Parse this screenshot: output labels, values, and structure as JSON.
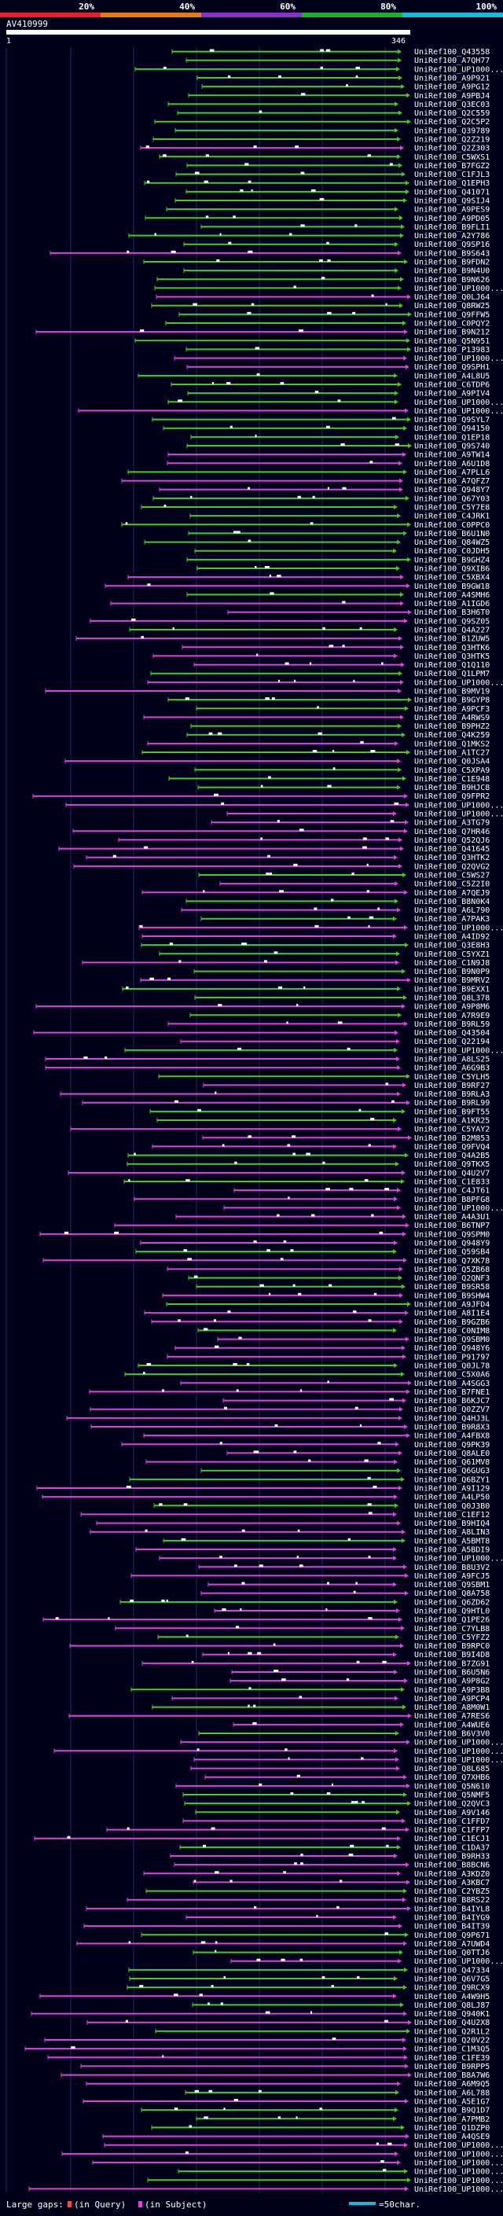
{
  "chart_data": {
    "type": "alignment-overview",
    "query_id": "AV410999",
    "query_length": 346,
    "axis_start_label": "1",
    "axis_end_label": "346",
    "identity_legend": [
      {
        "label": "20%",
        "color": "#e8202a"
      },
      {
        "label": "40%",
        "color": "#e87a1a"
      },
      {
        "label": "60%",
        "color": "#8a2fc8"
      },
      {
        "label": "80%",
        "color": "#1fae34"
      },
      {
        "label": "100%",
        "color": "#1ab8d8"
      }
    ],
    "hit_colors": {
      "magenta": "#dd44dd",
      "green": "#44cc22"
    },
    "footer": {
      "large_gaps_label": "Large gaps:",
      "in_query_label": "(in Query)",
      "in_subject_label": "(in Subject)",
      "scale_label": "=50char."
    },
    "hit_labels": [
      "UniRef100_Q43558",
      "UniRef100_A7QH77",
      "UniRef100_UP1000...",
      "UniRef100_A9P921",
      "UniRef100_A9PG12",
      "UniRef100_A9PBJ4",
      "UniRef100_Q3EC03",
      "UniRef100_Q2C559",
      "UniRef100_Q2C5P2",
      "UniRef100_Q39789",
      "UniRef100_Q2Z219",
      "UniRef100_Q2Z303",
      "UniRef100_C5WXS1",
      "UniRef100_B7FGZ2",
      "UniRef100_C1FJL3",
      "UniRef100_Q1EPH3",
      "UniRef100_Q41071",
      "UniRef100_Q9SIJ4",
      "UniRef100_A9PES9",
      "UniRef100_A9PD05",
      "UniRef100_B9FLI1",
      "UniRef100_A2Y786",
      "UniRef100_Q9SP16",
      "UniRef100_B9S643",
      "UniRef100_B9FDN2",
      "UniRef100_B9N4U0",
      "UniRef100_B9N626",
      "UniRef100_UP1000...",
      "UniRef100_Q0LJ64",
      "UniRef100_Q8RW25",
      "UniRef100_Q9FFW5",
      "UniRef100_C0PQY2",
      "UniRef100_B9N212",
      "UniRef100_Q5N951",
      "UniRef100_P13983",
      "UniRef100_UP1000...",
      "UniRef100_Q9SPH1",
      "UniRef100_A4L8U5",
      "UniRef100_C6TDP6",
      "UniRef100_A9PIV4",
      "UniRef100_UP1000...",
      "UniRef100_UP1000...",
      "UniRef100_Q9SYL7",
      "UniRef100_Q94150",
      "UniRef100_Q1EP18",
      "UniRef100_Q9S740",
      "UniRef100_A9TW14",
      "UniRef100_A6U1D8",
      "UniRef100_A7PLL6",
      "UniRef100_A7QFZ7",
      "UniRef100_Q948Y7",
      "UniRef100_Q67Y03",
      "UniRef100_C5Y7E8",
      "UniRef100_C4JRK1",
      "UniRef100_C0PPC0",
      "UniRef100_B6U1N0",
      "UniRef100_Q84WZ5",
      "UniRef100_C0JDH5",
      "UniRef100_B9GHZ4",
      "UniRef100_Q9XIB6",
      "UniRef100_C5XBX4",
      "UniRef100_B9GW18",
      "UniRef100_A4SMH6",
      "UniRef100_A1IGD6",
      "UniRef100_B3H6T0",
      "UniRef100_Q9SZ05",
      "UniRef100_Q4A227",
      "UniRef100_B1ZUW5",
      "UniRef100_Q3HTK6",
      "UniRef100_Q3HTK5",
      "UniRef100_Q1Q110",
      "UniRef100_Q1LPM7",
      "UniRef100_UP1000...",
      "UniRef100_B9MV19",
      "UniRef100_B9GYP8",
      "UniRef100_A9PCF3",
      "UniRef100_A4RWS9",
      "UniRef100_B9PHZ2",
      "UniRef100_Q4K259",
      "UniRef100_Q1MKS2",
      "UniRef100_A1TC27",
      "UniRef100_Q0JSA4",
      "UniRef100_C5XPA9",
      "UniRef100_C1E948",
      "UniRef100_B9HJC8",
      "UniRef100_Q9FPR2",
      "UniRef100_UP1000...",
      "UniRef100_UP1000...",
      "UniRef100_A3TG79",
      "UniRef100_Q7HR46",
      "UniRef100_Q52QJ6",
      "UniRef100_Q41645",
      "UniRef100_Q3HTK2",
      "UniRef100_Q2QVG2",
      "UniRef100_C5WS27",
      "UniRef100_C5Z2I0",
      "UniRef100_A7QEJ9",
      "UniRef100_B8N0K4",
      "UniRef100_A6L790",
      "UniRef100_A7PAK3",
      "UniRef100_UP1000...",
      "UniRef100_A4ID92",
      "UniRef100_Q3E8H3",
      "UniRef100_C5YXZ1",
      "UniRef100_C1N9J8",
      "UniRef100_B9N0P9",
      "UniRef100_B9MRV2",
      "UniRef100_B9EXX1",
      "UniRef100_Q8L378",
      "UniRef100_A9P8M6",
      "UniRef100_A7R9E9",
      "UniRef100_B9RL59",
      "UniRef100_Q43504",
      "UniRef100_Q22194",
      "UniRef100_UP1000...",
      "UniRef100_A8LS25",
      "UniRef100_A6G9B3",
      "UniRef100_C5YLH5",
      "UniRef100_B9RF27",
      "UniRef100_B9RLA3",
      "UniRef100_B9RL99",
      "UniRef100_B9FT55",
      "UniRef100_A1KR25",
      "UniRef100_C5YAY2",
      "UniRef100_B2M853",
      "UniRef100_Q9FVQ4",
      "UniRef100_Q4A2B5",
      "UniRef100_Q9TKX5",
      "UniRef100_Q4U2V7",
      "UniRef100_C1E833",
      "UniRef100_C4JT61",
      "UniRef100_B8PFG8",
      "UniRef100_UP1000...",
      "UniRef100_A4A3U1",
      "UniRef100_B6TNP7",
      "UniRef100_Q9SPM0",
      "UniRef100_Q948Y9",
      "UniRef100_Q59SB4",
      "UniRef100_Q7XK78",
      "UniRef100_Q5ZB68",
      "UniRef100_Q2QNF3",
      "UniRef100_B9SR58",
      "UniRef100_B9SHW4",
      "UniRef100_A9JFD4",
      "UniRef100_A8I1E4",
      "UniRef100_B9GZB6",
      "UniRef100_C0NIM8",
      "UniRef100_Q9SBM0",
      "UniRef100_Q948Y6",
      "UniRef100_P91797",
      "UniRef100_Q0JL78",
      "UniRef100_C5X0A6",
      "UniRef100_A4SGG3",
      "UniRef100_B7FNE1",
      "UniRef100_B6KJC7",
      "UniRef100_Q0ZZV7",
      "UniRef100_Q4HJ3L",
      "UniRef100_B9R8X3",
      "UniRef100_A4FBX8",
      "UniRef100_Q9PK39",
      "UniRef100_Q8ALE0",
      "UniRef100_Q61MV8",
      "UniRef100_Q6GUG3",
      "UniRef100_Q6BZY1",
      "UniRef100_A9I129",
      "UniRef100_A4LP50",
      "UniRef100_Q0J3B0",
      "UniRef100_C1EF12",
      "UniRef100_B9HIQ4",
      "UniRef100_A8LIN3",
      "UniRef100_A5BMT8",
      "UniRef100_A5BDI9",
      "UniRef100_UP1000...",
      "UniRef100_B8U3V2",
      "UniRef100_A9FCJ5",
      "UniRef100_Q9SBM1",
      "UniRef100_Q8A758",
      "UniRef100_Q6ZD62",
      "UniRef100_Q9HTL0",
      "UniRef100_Q1PE26",
      "UniRef100_C7YLB8",
      "UniRef100_C5YFZ2",
      "UniRef100_B9RPC0",
      "UniRef100_B9I4D8",
      "UniRef100_B7ZG91",
      "UniRef100_B6U5N6",
      "UniRef100_A9P8G2",
      "UniRef100_A9P3B8",
      "UniRef100_A9PCP4",
      "UniRef100_A8M0W1",
      "UniRef100_A7RES6",
      "UniRef100_A4WUE6",
      "UniRef100_B6V3V0",
      "UniRef100_UP1000...",
      "UniRef100_UP1000...",
      "UniRef100_UP1000...",
      "UniRef100_Q8L685",
      "UniRef100_Q7XHB6",
      "UniRef100_Q5N610",
      "UniRef100_Q5NMF5",
      "UniRef100_Q2QVC3",
      "UniRef100_A9V146",
      "UniRef100_C1FFD7",
      "UniRef100_C1FFP7",
      "UniRef100_C1ECJ1",
      "UniRef100_C1DA37",
      "UniRef100_B9RH33",
      "UniRef100_B8BCN6",
      "UniRef100_A3KDZ0",
      "UniRef100_A3KBC7",
      "UniRef100_C2YBZ5",
      "UniRef100_B8RS22",
      "UniRef100_B4IYL8",
      "UniRef100_B4IYG9",
      "UniRef100_B4IT39",
      "UniRef100_Q9P671",
      "UniRef100_A7UWD4",
      "UniRef100_Q0TTJ6",
      "UniRef100_UP1000...",
      "UniRef100_Q47334",
      "UniRef100_Q6V7G5",
      "UniRef100_Q9RCX9",
      "UniRef100_A4W9H5",
      "UniRef100_Q8LJ87",
      "UniRef100_Q940K1",
      "UniRef100_Q4U2X8",
      "UniRef100_Q2R1L2",
      "UniRef100_Q20V22",
      "UniRef100_C1M3Q5",
      "UniRef100_C1FE39",
      "UniRef100_B9RPP5",
      "UniRef100_B8A7W6",
      "UniRef100_A6M9Q5",
      "UniRef100_A6L788",
      "UniRef100_A5E1G7",
      "UniRef100_B9Q1D7",
      "UniRef100_A7PMB2",
      "UniRef100_Q1DZP0",
      "UniRef100_A4QSE9",
      "UniRef100_UP1000...",
      "UniRef100_UP1000...",
      "UniRef100_UP1000...",
      "UniRef100_UP1000...",
      "UniRef100_UP1000...",
      "UniRef100_UP1000..."
    ]
  }
}
